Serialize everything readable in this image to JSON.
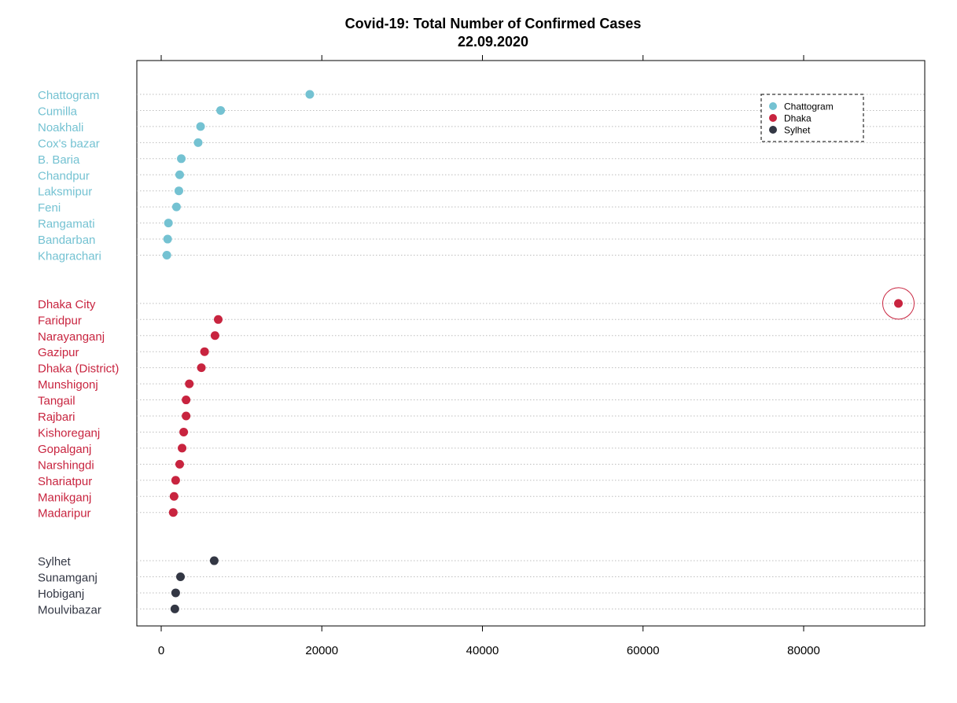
{
  "chart_data": {
    "type": "scatter",
    "title": "Covid-19: Total Number of Confirmed Cases",
    "subtitle": "22.09.2020",
    "xlim": [
      -3000,
      95000
    ],
    "xticks": [
      0,
      20000,
      40000,
      60000,
      80000
    ],
    "xtick_labels": [
      "0",
      "20000",
      "40000",
      "60000",
      "80000"
    ],
    "grid": "horizontal-dotted",
    "legend_position": "top-right",
    "highlight": "Dhaka City",
    "groups": [
      {
        "name": "Chattogram",
        "color": "#74C2D2",
        "points": [
          {
            "label": "Chattogram",
            "value": 18500
          },
          {
            "label": "Cumilla",
            "value": 7400
          },
          {
            "label": "Noakhali",
            "value": 4900
          },
          {
            "label": "Cox's bazar",
            "value": 4600
          },
          {
            "label": "B. Baria",
            "value": 2500
          },
          {
            "label": "Chandpur",
            "value": 2300
          },
          {
            "label": "Laksmipur",
            "value": 2200
          },
          {
            "label": "Feni",
            "value": 1900
          },
          {
            "label": "Rangamati",
            "value": 900
          },
          {
            "label": "Bandarban",
            "value": 800
          },
          {
            "label": "Khagrachari",
            "value": 700
          }
        ]
      },
      {
        "name": "Dhaka",
        "color": "#C8243F",
        "points": [
          {
            "label": "Dhaka City",
            "value": 91800
          },
          {
            "label": "Faridpur",
            "value": 7100
          },
          {
            "label": "Narayanganj",
            "value": 6700
          },
          {
            "label": "Gazipur",
            "value": 5400
          },
          {
            "label": "Dhaka (District)",
            "value": 5000
          },
          {
            "label": "Munshigonj",
            "value": 3500
          },
          {
            "label": "Tangail",
            "value": 3100
          },
          {
            "label": "Rajbari",
            "value": 3100
          },
          {
            "label": "Kishoreganj",
            "value": 2800
          },
          {
            "label": "Gopalganj",
            "value": 2600
          },
          {
            "label": "Narshingdi",
            "value": 2300
          },
          {
            "label": "Shariatpur",
            "value": 1800
          },
          {
            "label": "Manikganj",
            "value": 1600
          },
          {
            "label": "Madaripur",
            "value": 1500
          }
        ]
      },
      {
        "name": "Sylhet",
        "color": "#333744",
        "points": [
          {
            "label": "Sylhet",
            "value": 6600
          },
          {
            "label": "Sunamganj",
            "value": 2400
          },
          {
            "label": "Hobiganj",
            "value": 1800
          },
          {
            "label": "Moulvibazar",
            "value": 1700
          }
        ]
      }
    ]
  }
}
